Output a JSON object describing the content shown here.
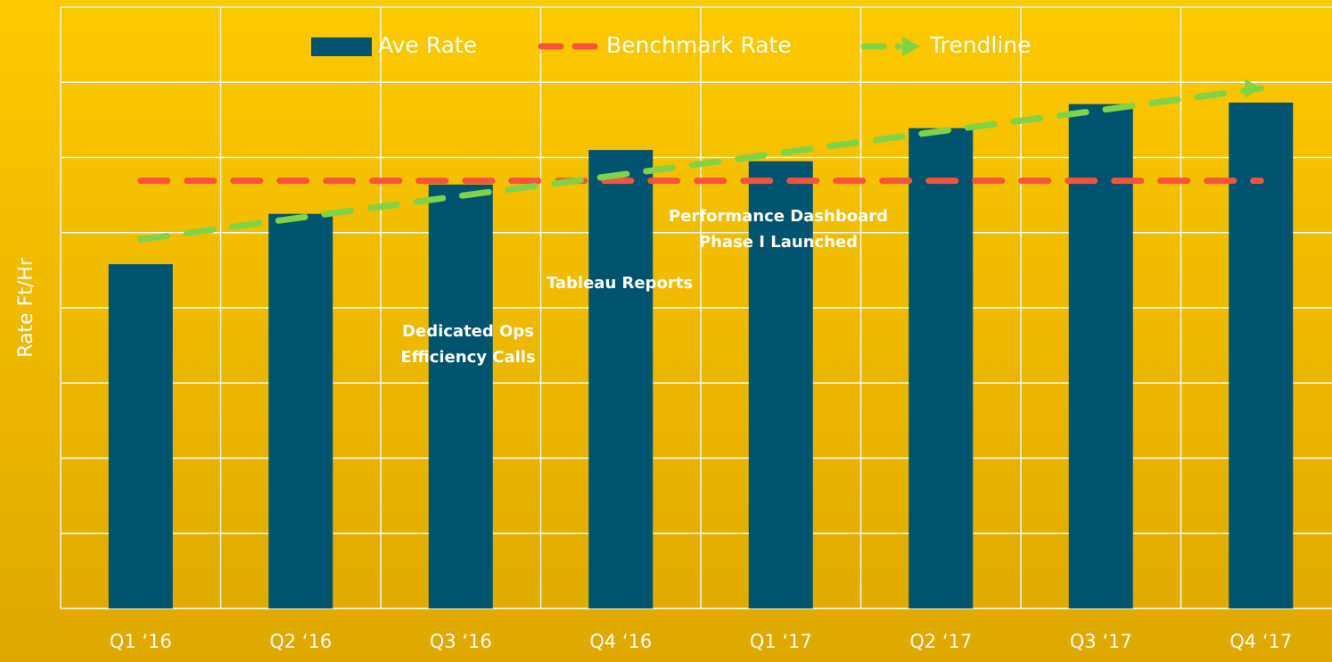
{
  "chart_data": {
    "type": "bar",
    "y_label": "Rate Ft/Hr",
    "categories": [
      "Q1 ‘16",
      "Q2 ‘16",
      "Q3 ‘16",
      "Q4 ‘16",
      "Q1 ‘17",
      "Q2 ‘17",
      "Q3 ‘17",
      "Q4 ‘17"
    ],
    "series": [
      {
        "name": "Ave Rate",
        "type": "bar",
        "color": "#015470",
        "values": [
          4.58,
          5.25,
          5.64,
          6.1,
          5.95,
          6.39,
          6.71,
          6.73
        ]
      },
      {
        "name": "Benchmark Rate",
        "type": "line",
        "color": "#f5533d",
        "values": [
          5.69,
          5.69,
          5.69,
          5.69,
          5.69,
          5.69,
          5.69,
          5.69
        ]
      },
      {
        "name": "Trendline",
        "type": "line",
        "color": "#7ed348",
        "values": [
          4.91,
          5.2,
          5.49,
          5.77,
          6.06,
          6.35,
          6.63,
          6.92
        ]
      }
    ],
    "annotations": [
      {
        "lines": [
          "Dedicated Ops",
          "Efficiency Calls"
        ]
      },
      {
        "lines": [
          "Tableau Reports"
        ]
      },
      {
        "lines": [
          "Performance Dashboard",
          "Phase I Launched"
        ]
      }
    ],
    "ylim": [
      0,
      8
    ],
    "yticks": [
      0,
      1,
      2,
      3,
      4,
      5,
      6,
      7,
      8
    ],
    "grid": true
  }
}
